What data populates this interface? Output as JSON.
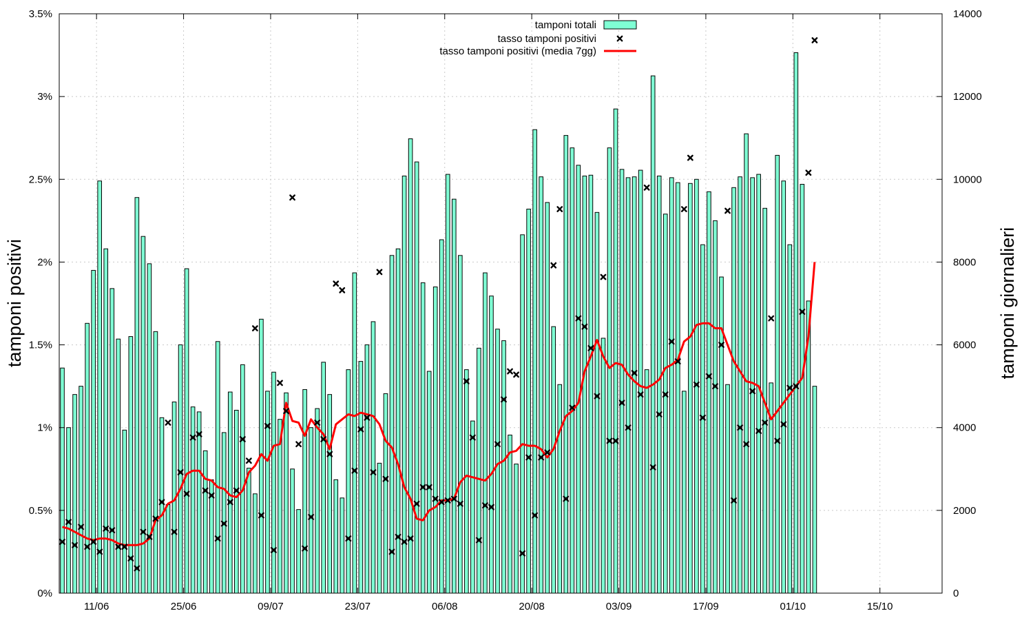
{
  "chart_data": {
    "type": "bar",
    "title": "",
    "ylabel": "tamponi positivi",
    "y2label": "tamponi giornalieri",
    "ylim": [
      0,
      3.5
    ],
    "y2lim": [
      0,
      14000
    ],
    "x_start_day": 0,
    "x_range_days": [
      0,
      142
    ],
    "x_labels": [
      "11/06",
      "25/06",
      "09/07",
      "23/07",
      "06/08",
      "20/08",
      "03/09",
      "17/09",
      "01/10",
      "15/10"
    ],
    "y_ticks": [
      "0%",
      "0.5%",
      "1%",
      "1.5%",
      "2%",
      "2.5%",
      "3%",
      "3.5%"
    ],
    "y2_ticks": [
      "0",
      "2000",
      "4000",
      "6000",
      "8000",
      "10000",
      "12000",
      "14000"
    ],
    "grid": true,
    "legend_position": "top-center",
    "colors": {
      "bars": "#7fffd4",
      "positive_rate_marker": "#000000",
      "moving_average": "#ff0000"
    },
    "series": [
      {
        "name": "tamponi totali",
        "kind": "bar",
        "axis": "y2",
        "values": [
          5440,
          4000,
          4800,
          5000,
          6520,
          7800,
          9960,
          8320,
          7360,
          6140,
          3940,
          6200,
          9560,
          8620,
          7960,
          6320,
          4240,
          2140,
          4620,
          6000,
          7840,
          4500,
          4380,
          3440,
          2740,
          6080,
          3880,
          4860,
          4420,
          5520,
          3020,
          2400,
          6620,
          4880,
          5340,
          4200,
          4840,
          3000,
          2020,
          4920,
          4000,
          4460,
          5580,
          4800,
          2740,
          2300,
          5400,
          7740,
          5600,
          6000,
          6560,
          3140,
          4820,
          8160,
          8320,
          10080,
          10980,
          10420,
          7500,
          5360,
          7400,
          8540,
          10120,
          9520,
          8160,
          5400,
          4160,
          5920,
          7740,
          7180,
          6380,
          6100,
          3820,
          3120,
          8660,
          9280,
          11200,
          10060,
          9440,
          6440,
          5040,
          11060,
          10760,
          10340,
          10080,
          10100,
          9200,
          6160,
          10760,
          11700,
          10240,
          10040,
          10060,
          10220,
          5400,
          12500,
          10080,
          9160,
          10040,
          9920,
          4880,
          9900,
          10000,
          8420,
          9700,
          9000,
          7640,
          5040,
          9800,
          10060,
          11100,
          10040,
          10120,
          9300,
          5080,
          10580,
          9960,
          8420,
          13060,
          9880,
          7060,
          5000
        ]
      },
      {
        "name": "tasso tamponi positivi",
        "kind": "scatter",
        "axis": "y",
        "values": [
          0.31,
          0.43,
          0.29,
          0.4,
          0.28,
          0.31,
          0.25,
          0.39,
          0.38,
          0.28,
          0.28,
          0.21,
          0.15,
          0.37,
          0.34,
          0.45,
          0.55,
          1.03,
          0.37,
          0.73,
          0.6,
          0.94,
          0.96,
          0.62,
          0.59,
          0.33,
          0.42,
          0.55,
          0.62,
          0.93,
          0.8,
          1.6,
          0.47,
          1.01,
          0.26,
          1.27,
          1.1,
          2.39,
          0.9,
          0.27,
          0.46,
          1.03,
          0.93,
          0.84,
          1.87,
          1.83,
          0.33,
          0.74,
          0.99,
          1.06,
          0.73,
          1.94,
          0.69,
          0.25,
          0.34,
          0.31,
          0.33,
          0.54,
          0.64,
          0.64,
          0.57,
          0.55,
          0.56,
          0.57,
          0.54,
          1.28,
          0.94,
          0.32,
          0.53,
          0.52,
          0.9,
          1.17,
          1.34,
          1.32,
          0.24,
          0.82,
          0.47,
          0.82,
          0.85,
          1.98,
          2.32,
          0.57,
          1.12,
          1.66,
          1.61,
          1.48,
          1.19,
          1.91,
          0.92,
          0.92,
          1.15,
          1.0,
          1.33,
          1.2,
          2.45,
          0.76,
          1.08,
          1.2,
          1.52,
          1.4,
          2.32,
          2.63,
          1.26,
          1.06,
          1.31,
          1.25,
          1.5,
          2.31,
          0.56,
          1.0,
          0.9,
          1.22,
          0.98,
          1.03,
          1.66,
          0.92,
          1.02,
          1.24,
          1.25,
          1.7,
          2.54,
          3.34
        ]
      },
      {
        "name": "tasso tamponi positivi (media 7gg)",
        "kind": "line",
        "axis": "y",
        "values": [
          0.4,
          0.39,
          0.37,
          0.35,
          0.33,
          0.32,
          0.33,
          0.33,
          0.32,
          0.3,
          0.29,
          0.29,
          0.29,
          0.3,
          0.33,
          0.44,
          0.47,
          0.54,
          0.56,
          0.63,
          0.72,
          0.74,
          0.74,
          0.69,
          0.68,
          0.64,
          0.63,
          0.59,
          0.58,
          0.62,
          0.73,
          0.77,
          0.84,
          0.8,
          0.89,
          0.9,
          1.15,
          1.04,
          1.03,
          0.95,
          1.05,
          1.0,
          0.96,
          0.87,
          1.02,
          1.05,
          1.08,
          1.07,
          1.09,
          1.08,
          1.07,
          1.02,
          0.92,
          0.88,
          0.78,
          0.64,
          0.57,
          0.45,
          0.44,
          0.5,
          0.52,
          0.56,
          0.56,
          0.57,
          0.67,
          0.71,
          0.7,
          0.69,
          0.68,
          0.72,
          0.78,
          0.8,
          0.85,
          0.86,
          0.9,
          0.89,
          0.89,
          0.87,
          0.82,
          0.87,
          0.98,
          1.07,
          1.1,
          1.15,
          1.34,
          1.43,
          1.53,
          1.43,
          1.36,
          1.39,
          1.38,
          1.32,
          1.28,
          1.25,
          1.24,
          1.26,
          1.29,
          1.36,
          1.38,
          1.41,
          1.52,
          1.55,
          1.62,
          1.63,
          1.63,
          1.6,
          1.6,
          1.5,
          1.4,
          1.34,
          1.28,
          1.27,
          1.25,
          1.15,
          1.05,
          1.1,
          1.15,
          1.2,
          1.25,
          1.3,
          1.55,
          2.0
        ]
      }
    ]
  }
}
